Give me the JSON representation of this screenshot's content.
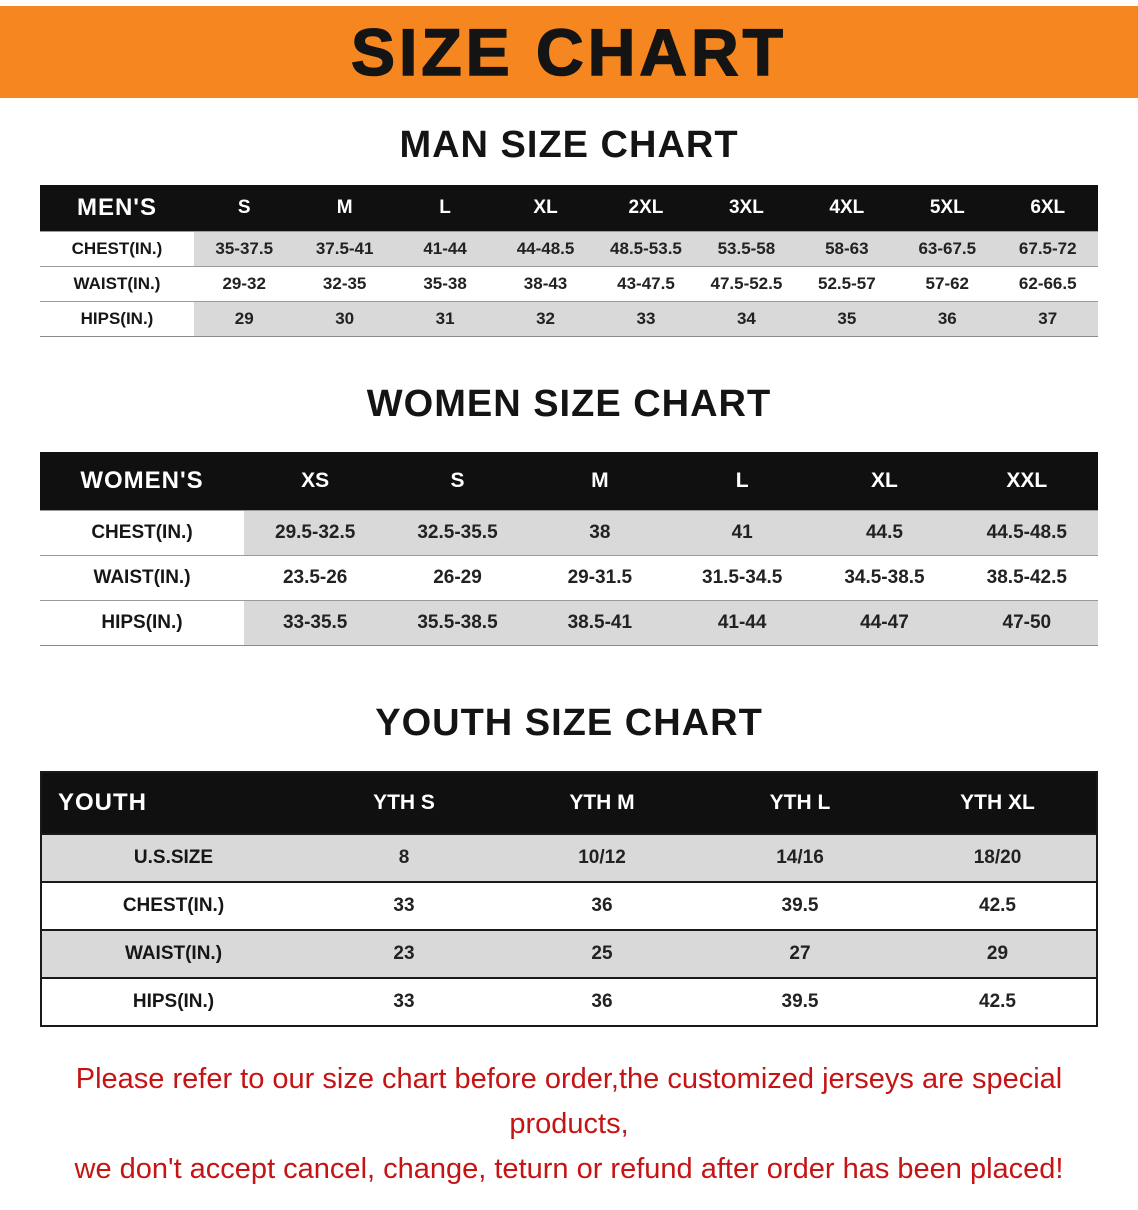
{
  "banner": {
    "title": "SIZE CHART",
    "bg_color": "#f6861f"
  },
  "charts": [
    {
      "title": "MAN SIZE CHART",
      "header": [
        "MEN'S",
        "S",
        "M",
        "L",
        "XL",
        "2XL",
        "3XL",
        "4XL",
        "5XL",
        "6XL"
      ],
      "rows": [
        {
          "label": "CHEST(IN.)",
          "values": [
            "35-37.5",
            "37.5-41",
            "41-44",
            "44-48.5",
            "48.5-53.5",
            "53.5-58",
            "58-63",
            "63-67.5",
            "67.5-72"
          ]
        },
        {
          "label": "WAIST(IN.)",
          "values": [
            "29-32",
            "32-35",
            "35-38",
            "38-43",
            "43-47.5",
            "47.5-52.5",
            "52.5-57",
            "57-62",
            "62-66.5"
          ]
        },
        {
          "label": "HIPS(IN.)",
          "values": [
            "29",
            "30",
            "31",
            "32",
            "33",
            "34",
            "35",
            "36",
            "37"
          ]
        }
      ]
    },
    {
      "title": "WOMEN SIZE CHART",
      "header": [
        "WOMEN'S",
        "XS",
        "S",
        "M",
        "L",
        "XL",
        "XXL"
      ],
      "rows": [
        {
          "label": "CHEST(IN.)",
          "values": [
            "29.5-32.5",
            "32.5-35.5",
            "38",
            "41",
            "44.5",
            "44.5-48.5"
          ]
        },
        {
          "label": "WAIST(IN.)",
          "values": [
            "23.5-26",
            "26-29",
            "29-31.5",
            "31.5-34.5",
            "34.5-38.5",
            "38.5-42.5"
          ]
        },
        {
          "label": "HIPS(IN.)",
          "values": [
            "33-35.5",
            "35.5-38.5",
            "38.5-41",
            "41-44",
            "44-47",
            "47-50"
          ]
        }
      ]
    },
    {
      "title": "YOUTH SIZE CHART",
      "header": [
        "YOUTH",
        "YTH S",
        "YTH M",
        "YTH L",
        "YTH XL"
      ],
      "rows": [
        {
          "label": "U.S.SIZE",
          "values": [
            "8",
            "10/12",
            "14/16",
            "18/20"
          ]
        },
        {
          "label": "CHEST(IN.)",
          "values": [
            "33",
            "36",
            "39.5",
            "42.5"
          ]
        },
        {
          "label": "WAIST(IN.)",
          "values": [
            "23",
            "25",
            "27",
            "29"
          ]
        },
        {
          "label": "HIPS(IN.)",
          "values": [
            "33",
            "36",
            "39.5",
            "42.5"
          ]
        }
      ]
    }
  ],
  "footer": {
    "line1": "Please refer to our size chart before order,the customized jerseys are special products,",
    "line2": "we don't accept cancel, change, teturn or refund after order has been placed!"
  }
}
